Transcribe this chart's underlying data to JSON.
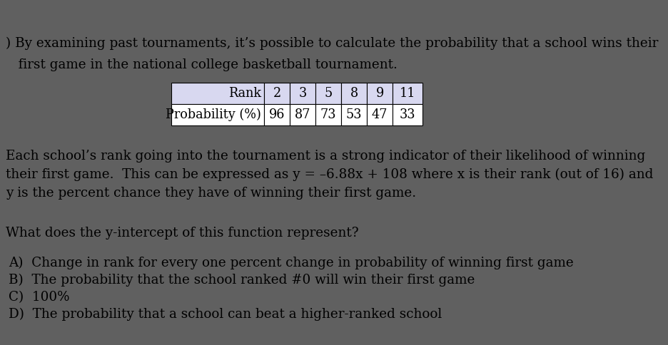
{
  "bg_color_dark": "#606060",
  "bg_color_main": "#ffffff",
  "bg_color_right_strip": "#7a5a45",
  "intro_text_line1": ") By examining past tournaments, it’s possible to calculate the probability that a school wins their",
  "intro_text_line2": "   first game in the national college basketball tournament.",
  "table_header": [
    "Rank",
    "2",
    "3",
    "5",
    "8",
    "9",
    "11"
  ],
  "table_row": [
    "Probability (%)",
    "96",
    "87",
    "73",
    "53",
    "47",
    "33"
  ],
  "table_header_bg": "#d8d8f0",
  "table_border_color": "#000000",
  "paragraph1_line1": "Each school’s rank going into the tournament is a strong indicator of their likelihood of winning",
  "paragraph1_line2": "their first game.  This can be expressed as y = –6.88x + 108 where x is their rank (out of 16) and",
  "paragraph1_line3": "y is the percent chance they have of winning their first game.",
  "question": "What does the y-intercept of this function represent?",
  "option_a": "A)  Change in rank for every one percent change in probability of winning first game",
  "option_b": "B)  The probability that the school ranked #0 will win their first game",
  "option_c": "C)  100%",
  "option_d": "D)  The probability that a school can beat a higher-ranked school",
  "font_size_main": 13.2,
  "font_family": "DejaVu Serif",
  "fig_width": 9.36,
  "fig_height": 4.84,
  "dpi": 100
}
